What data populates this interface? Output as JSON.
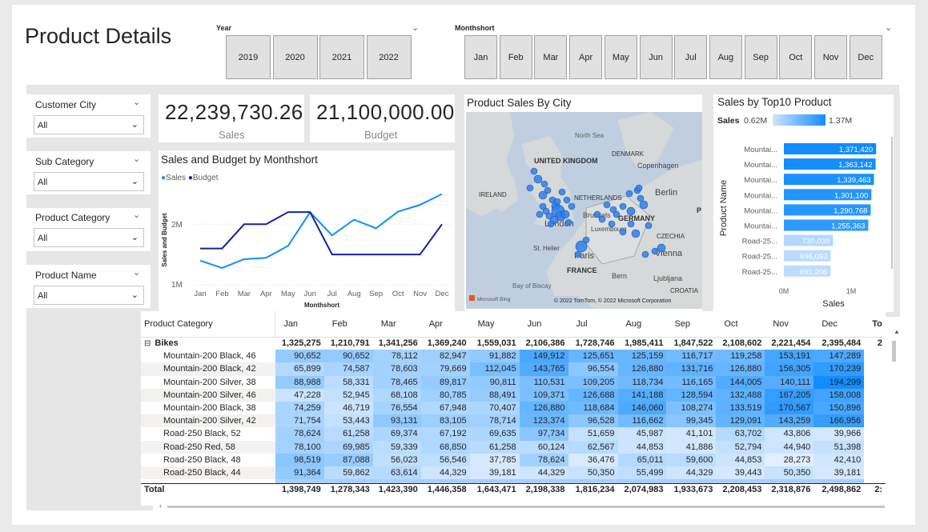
{
  "page_title": "Product Details",
  "year_slicer": {
    "label": "Year",
    "options": [
      "2019",
      "2020",
      "2021",
      "2022"
    ]
  },
  "month_slicer": {
    "label": "Monthshort",
    "options": [
      "Jan",
      "Feb",
      "Mar",
      "Apr",
      "May",
      "Jun",
      "Jul",
      "Aug",
      "Sep",
      "Oct",
      "Nov",
      "Dec"
    ]
  },
  "filters": [
    {
      "label": "Customer City",
      "value": "All"
    },
    {
      "label": "Sub Category",
      "value": "All"
    },
    {
      "label": "Product Category",
      "value": "All"
    },
    {
      "label": "Product Name",
      "value": "All"
    }
  ],
  "kpis": [
    {
      "value": "22,239,730.26",
      "label": "Sales"
    },
    {
      "value": "21,100,000.00",
      "label": "Budget"
    }
  ],
  "line_chart": {
    "title": "Sales and Budget by Monthshort",
    "legend": [
      "Sales",
      "Budget"
    ],
    "colors": {
      "Sales": "#118dff",
      "Budget": "#12239e"
    },
    "ylabel": "Sales and Budget",
    "xlabel": "Monthshort",
    "ytick_labels": [
      "2M",
      "1M"
    ]
  },
  "map": {
    "title": "Product Sales By City",
    "labels": {
      "north_sea": "North Sea",
      "uk": "UNITED KINGDOM",
      "denmark": "DENMARK",
      "copenhagen": "Copenhagen",
      "ireland": "IRELAND",
      "netherlands": "NETHERLANDS",
      "berlin": "Berlin",
      "london": "London",
      "brussels": "Brussels",
      "germany": "GERMANY",
      "luxembourg": "Luxembourg",
      "czechia": "CZECHIA",
      "sthelier": "St. Helier",
      "paris": "Paris",
      "vienna": "Vienna",
      "bay": "Bay of Biscay",
      "france": "FRANCE",
      "bern": "Bern",
      "ljubljana": "Ljubljana",
      "croatia": "CROATIA",
      "p": "P"
    },
    "attribution": "© 2022 TomTom, © 2022 Microsoft Corporation",
    "bing": "Microsoft Bing"
  },
  "bar_chart": {
    "title": "Sales by Top10 Product",
    "legend_title": "Sales",
    "legend_min": "0.62M",
    "legend_max": "1.37M",
    "ylabel": "Product Name",
    "xlabel": "Sales",
    "xtick_labels": [
      "0M",
      "1M"
    ]
  },
  "matrix": {
    "headers": [
      "Product Category",
      "Jan",
      "Feb",
      "Mar",
      "Apr",
      "May",
      "Jun",
      "Jul",
      "Aug",
      "Sep",
      "Oct",
      "Nov",
      "Dec",
      "To"
    ],
    "group": {
      "label": "Bikes",
      "expander": "⊟",
      "values": [
        "1,325,275",
        "1,210,791",
        "1,341,256",
        "1,369,240",
        "1,559,031",
        "2,106,386",
        "1,728,746",
        "1,985,411",
        "1,847,522",
        "2,108,602",
        "2,221,454",
        "2,395,484",
        "2"
      ]
    },
    "rows": [
      {
        "name": "Mountain-200 Black, 46",
        "values": [
          "90,652",
          "90,652",
          "78,112",
          "82,947",
          "91,882",
          "149,912",
          "125,651",
          "125,159",
          "116,717",
          "119,258",
          "153,191",
          "147,289"
        ]
      },
      {
        "name": "Mountain-200 Black, 42",
        "values": [
          "65,899",
          "74,587",
          "78,603",
          "79,669",
          "112,045",
          "143,765",
          "96,554",
          "126,880",
          "131,716",
          "126,880",
          "156,305",
          "170,239"
        ]
      },
      {
        "name": "Mountain-200 Silver, 38",
        "values": [
          "88,988",
          "58,331",
          "78,465",
          "89,817",
          "90,811",
          "110,531",
          "109,205",
          "118,734",
          "116,165",
          "144,005",
          "140,111",
          "194,299"
        ]
      },
      {
        "name": "Mountain-200 Silver, 46",
        "values": [
          "47,228",
          "52,945",
          "68,108",
          "80,785",
          "88,491",
          "109,371",
          "126,688",
          "141,188",
          "128,594",
          "132,488",
          "167,205",
          "158,008"
        ]
      },
      {
        "name": "Mountain-200 Black, 38",
        "values": [
          "74,259",
          "46,719",
          "76,554",
          "67,948",
          "70,407",
          "126,880",
          "118,684",
          "146,060",
          "108,274",
          "133,519",
          "170,567",
          "150,896"
        ]
      },
      {
        "name": "Mountain-200 Silver, 42",
        "values": [
          "71,754",
          "53,443",
          "93,131",
          "83,105",
          "78,714",
          "123,374",
          "96,528",
          "116,662",
          "99,345",
          "129,091",
          "143,259",
          "166,956"
        ]
      },
      {
        "name": "Road-250 Black, 52",
        "values": [
          "78,624",
          "61,258",
          "69,374",
          "67,192",
          "69,635",
          "97,734",
          "51,659",
          "45,987",
          "41,101",
          "63,702",
          "43,806",
          "39,966"
        ]
      },
      {
        "name": "Road-250 Red, 58",
        "values": [
          "78,100",
          "69,985",
          "59,339",
          "68,850",
          "61,258",
          "60,124",
          "62,567",
          "44,853",
          "41,886",
          "52,794",
          "44,940",
          "51,398"
        ]
      },
      {
        "name": "Road-250 Black, 48",
        "values": [
          "98,519",
          "87,088",
          "56,023",
          "56,546",
          "37,785",
          "78,624",
          "36,476",
          "65,011",
          "59,600",
          "44,853",
          "28,273",
          "42,410"
        ]
      },
      {
        "name": "Road-250 Black, 44",
        "values": [
          "91,364",
          "59,862",
          "63,614",
          "44,329",
          "39,181",
          "44,329",
          "50,350",
          "55,499",
          "44,329",
          "39,443",
          "50,350",
          "39,181"
        ]
      }
    ],
    "total": {
      "label": "Total",
      "values": [
        "1,398,749",
        "1,278,343",
        "1,423,390",
        "1,446,358",
        "1,643,471",
        "2,198,338",
        "1,816,234",
        "2,074,983",
        "1,933,673",
        "2,208,453",
        "2,318,876",
        "2,498,862",
        "2:"
      ]
    }
  },
  "chart_data": [
    {
      "type": "line",
      "title": "Sales and Budget by Monthshort",
      "xlabel": "Monthshort",
      "ylabel": "Sales and Budget",
      "x": [
        "Jan",
        "Feb",
        "Mar",
        "Apr",
        "May",
        "Jun",
        "Jul",
        "Aug",
        "Sep",
        "Oct",
        "Nov",
        "Dec"
      ],
      "ylim": [
        1000000,
        2400000
      ],
      "series": [
        {
          "name": "Sales",
          "values": [
            1398749,
            1278343,
            1423390,
            1446358,
            1643471,
            2198338,
            1816234,
            2074983,
            1933673,
            2208453,
            2318876,
            2498862
          ]
        },
        {
          "name": "Budget",
          "values": [
            1600000,
            1600000,
            2000000,
            2000000,
            2200000,
            2200000,
            1500000,
            1500000,
            1500000,
            1500000,
            1500000,
            2000000
          ]
        }
      ],
      "legend": "top-left"
    },
    {
      "type": "bar",
      "title": "Sales by Top10 Product",
      "xlabel": "Sales",
      "ylabel": "Product Name",
      "categories": [
        "Mountai...",
        "Mountai...",
        "Mountai...",
        "Mountai...",
        "Mountai...",
        "Mountai...",
        "Road-25...",
        "Road-25...",
        "Road-25..."
      ],
      "values": [
        1371420,
        1363142,
        1339463,
        1301100,
        1290768,
        1255363,
        730038,
        696093,
        691206
      ],
      "data_labels": [
        "1,371,420",
        "1,363,142",
        "1,339,463",
        "1,301,100",
        "1,290,768",
        "1,255,363",
        "730,038",
        "696,093",
        "691,206"
      ],
      "xlim": [
        0,
        1500000
      ]
    }
  ]
}
